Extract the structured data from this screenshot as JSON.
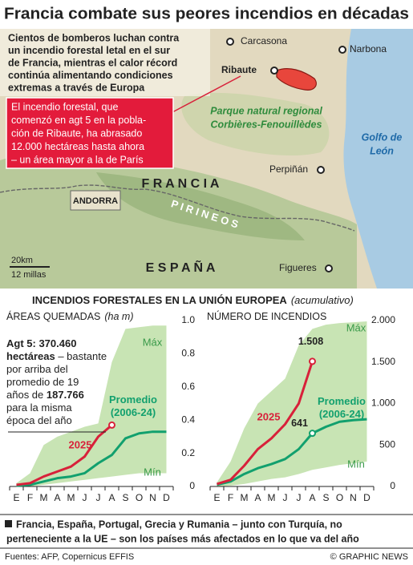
{
  "title": "Francia combate sus peores incendios en décadas",
  "intro": [
    "Cientos de bomberos luchan contra",
    "un incendio forestal letal en el sur",
    "de Francia, mientras el calor récord",
    "continúa alimentando condiciones",
    "extremas a través de Europa"
  ],
  "callout": [
    "El incendio forestal, que",
    "comenzó en agt 5 en la pobla-",
    "ción de Ribaute, ha abrasado",
    "12.000 hectáreas hasta ahora",
    "– un área mayor a la de París"
  ],
  "map": {
    "cities": [
      "Carcasona",
      "Narbona",
      "Ribaute",
      "Perpiñán",
      "Figueres"
    ],
    "park": [
      "Parque natural regional",
      "Corbières-Fenouillèdes"
    ],
    "sea": [
      "Golfo de",
      "León"
    ],
    "andorra": "ANDORRA",
    "france": "F R A N C I A",
    "spain": "E S P A Ñ A",
    "mountains": "P I R I N E O S",
    "scale": [
      "20km",
      "12 millas"
    ]
  },
  "section_title": "INCENDIOS FORESTALES EN LA UNIÓN EUROPEA",
  "section_note": "(acumulativo)",
  "chart_data": [
    {
      "type": "line",
      "title": "ÁREAS QUEMADAS",
      "unit": "(ha m)",
      "categories": [
        "E",
        "F",
        "M",
        "A",
        "M",
        "J",
        "J",
        "A",
        "S",
        "O",
        "N",
        "D"
      ],
      "ylim": [
        0,
        1.0
      ],
      "yticks": [
        0,
        0.2,
        0.4,
        0.6,
        0.8,
        {
          "value": 1.0,
          "label": "1.0"
        }
      ],
      "grid": false,
      "series": [
        {
          "name": "Máx",
          "color": "#c8e4b4",
          "fill": true,
          "values": [
            0.02,
            0.08,
            0.25,
            0.3,
            0.33,
            0.36,
            0.38,
            0.75,
            0.95,
            0.96,
            0.97,
            0.97
          ]
        },
        {
          "name": "Mín",
          "color": "#ffffff",
          "fill": true,
          "values": [
            0,
            0,
            0.01,
            0.02,
            0.03,
            0.04,
            0.05,
            0.06,
            0.07,
            0.08,
            0.08,
            0.08
          ]
        },
        {
          "name": "Promedio (2006-24)",
          "color": "#12a06e",
          "values": [
            0.005,
            0.01,
            0.03,
            0.05,
            0.06,
            0.08,
            0.14,
            0.19,
            0.29,
            0.32,
            0.33,
            0.33
          ]
        },
        {
          "name": "2025",
          "color": "#d8213a",
          "marker": true,
          "values": [
            0.01,
            0.02,
            0.06,
            0.09,
            0.12,
            0.18,
            0.3,
            0.37,
            null,
            null,
            null,
            null
          ]
        }
      ],
      "annotation": [
        [
          {
            "text": "Agt 5: 370.460",
            "bold": true
          }
        ],
        [
          {
            "text": "hectáreas",
            "bold": true
          },
          {
            "text": " – bastante",
            "bold": false
          }
        ],
        [
          {
            "text": "por arriba del",
            "bold": false
          }
        ],
        [
          {
            "text": "promedio de 19",
            "bold": false
          }
        ],
        [
          {
            "text": "años de ",
            "bold": false
          },
          {
            "text": "187.766",
            "bold": true
          }
        ],
        [
          {
            "text": "para la misma",
            "bold": false
          }
        ],
        [
          {
            "text": "época del año",
            "bold": false
          }
        ]
      ]
    },
    {
      "type": "line",
      "title": "NÚMERO DE INCENDIOS",
      "categories": [
        "E",
        "F",
        "M",
        "A",
        "M",
        "J",
        "J",
        "A",
        "S",
        "O",
        "N",
        "D"
      ],
      "ylim": [
        0,
        2000
      ],
      "yticks": [
        0,
        500,
        {
          "value": 1000,
          "label": "1.000"
        },
        {
          "value": 1500,
          "label": "1.500"
        },
        {
          "value": 2000,
          "label": "2.000"
        }
      ],
      "grid": false,
      "series": [
        {
          "name": "Máx",
          "color": "#c8e4b4",
          "fill": true,
          "values": [
            50,
            300,
            700,
            1000,
            1150,
            1300,
            1700,
            1900,
            1950,
            1970,
            1980,
            1990
          ]
        },
        {
          "name": "Mín",
          "color": "#ffffff",
          "fill": true,
          "values": [
            0,
            10,
            30,
            60,
            90,
            110,
            150,
            200,
            230,
            260,
            280,
            300
          ]
        },
        {
          "name": "Promedio (2006-24)",
          "color": "#12a06e",
          "values": [
            20,
            60,
            150,
            220,
            270,
            330,
            450,
            641,
            720,
            780,
            800,
            810
          ],
          "value_labels": [
            null,
            null,
            null,
            null,
            null,
            null,
            null,
            "641",
            null,
            null,
            null,
            null
          ]
        },
        {
          "name": "2025",
          "color": "#d8213a",
          "marker": true,
          "values": [
            30,
            80,
            250,
            450,
            580,
            750,
            1000,
            1508,
            null,
            null,
            null,
            null
          ],
          "value_labels": [
            null,
            null,
            null,
            null,
            null,
            null,
            null,
            "1.508",
            null,
            null,
            null,
            null
          ]
        }
      ]
    }
  ],
  "footnote": [
    "Francia, España, Portugal, Grecia y Rumania – junto con Turquía, no",
    "perteneciente a la UE – son los países más afectados en lo que va del año"
  ],
  "source": "Fuentes: AFP, Copernicus EFFIS",
  "credit": "© GRAPHIC NEWS"
}
